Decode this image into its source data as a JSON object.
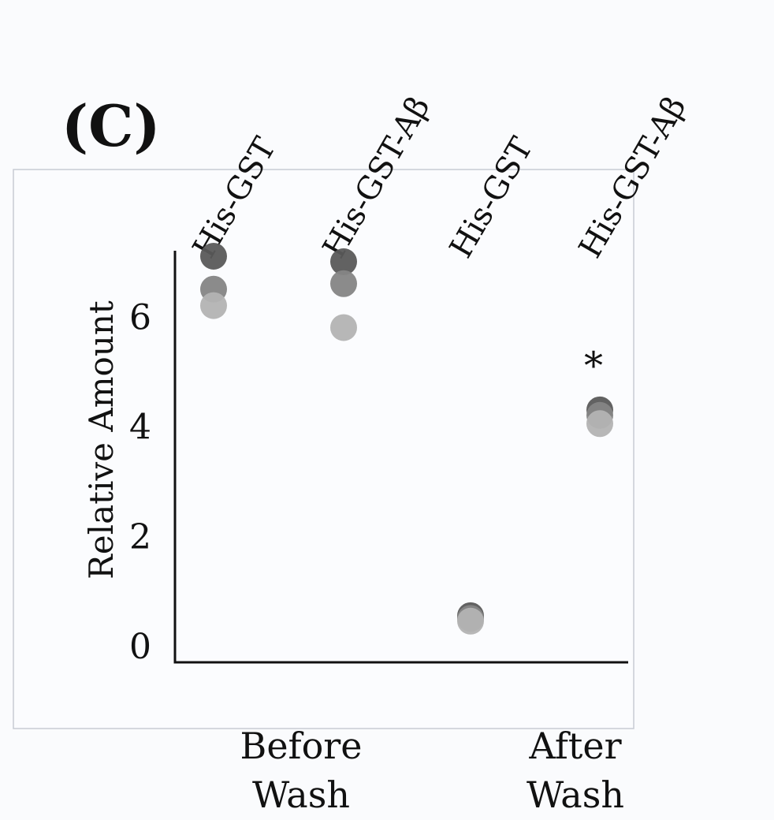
{
  "panel_label": "(C)",
  "chart_data": {
    "type": "scatter",
    "ylabel": "Relative Amount",
    "xlabel": "",
    "ylim": [
      -0.3,
      7.2
    ],
    "yticks": [
      0,
      2,
      4,
      6
    ],
    "categories": [
      "His-GST",
      "His-GST-Aβ",
      "His-GST",
      "His-GST-Aβ"
    ],
    "group_labels": [
      {
        "lines": [
          "Before",
          "Wash"
        ],
        "covers": [
          0,
          1
        ]
      },
      {
        "lines": [
          "After",
          "Wash"
        ],
        "covers": [
          2,
          3
        ]
      }
    ],
    "series": [
      {
        "color": "#5a5a5a",
        "values": [
          7.1,
          7.0,
          0.55,
          4.3
        ]
      },
      {
        "color": "#858585",
        "values": [
          6.5,
          6.6,
          0.5,
          4.2
        ]
      },
      {
        "color": "#b3b3b3",
        "values": [
          6.2,
          5.8,
          0.45,
          4.05
        ]
      }
    ],
    "annotations": [
      {
        "category_index": 3,
        "text": "*"
      }
    ],
    "grid": false,
    "colors": {
      "axis": "#111111",
      "frame": "#c8cbd4",
      "text": "#111111"
    }
  }
}
